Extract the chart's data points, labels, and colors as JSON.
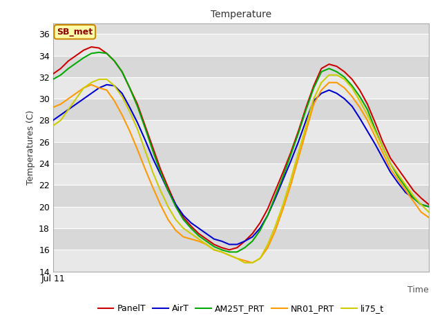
{
  "title": "Temperature",
  "xlabel": "Time",
  "ylabel": "Temperatures (C)",
  "annotation": "SB_met",
  "ylim": [
    14,
    37
  ],
  "yticks": [
    14,
    16,
    18,
    20,
    22,
    24,
    26,
    28,
    30,
    32,
    34,
    36
  ],
  "xlabel_tick": "Jul 11",
  "fig_bg": "#ffffff",
  "plot_bg": "#d8d8d8",
  "band_color1": "#e8e8e8",
  "band_color2": "#f0f0f0",
  "series": {
    "PanelT": {
      "color": "#cc0000",
      "data": [
        32.3,
        32.8,
        33.5,
        34.0,
        34.5,
        34.8,
        34.7,
        34.2,
        33.5,
        32.5,
        31.0,
        29.5,
        27.5,
        25.5,
        23.5,
        21.8,
        20.2,
        19.0,
        18.2,
        17.5,
        17.0,
        16.5,
        16.2,
        16.0,
        16.2,
        16.8,
        17.5,
        18.5,
        19.8,
        21.5,
        23.2,
        25.0,
        27.0,
        29.2,
        31.2,
        32.8,
        33.2,
        33.0,
        32.5,
        31.8,
        30.8,
        29.5,
        27.8,
        26.0,
        24.5,
        23.5,
        22.5,
        21.5,
        20.8,
        20.2
      ]
    },
    "AirT": {
      "color": "#0000cc",
      "data": [
        28.0,
        28.5,
        29.0,
        29.5,
        30.0,
        30.5,
        31.0,
        31.3,
        31.2,
        30.5,
        29.2,
        27.8,
        26.2,
        24.5,
        23.0,
        21.5,
        20.2,
        19.2,
        18.5,
        18.0,
        17.5,
        17.0,
        16.8,
        16.5,
        16.5,
        16.8,
        17.2,
        18.0,
        19.2,
        20.8,
        22.5,
        24.2,
        26.0,
        28.0,
        29.8,
        30.5,
        30.8,
        30.5,
        30.0,
        29.3,
        28.2,
        27.0,
        25.8,
        24.5,
        23.2,
        22.2,
        21.3,
        20.8,
        20.2,
        20.0
      ]
    },
    "AM25T_PRT": {
      "color": "#00aa00",
      "data": [
        31.8,
        32.2,
        32.8,
        33.3,
        33.8,
        34.2,
        34.3,
        34.2,
        33.5,
        32.5,
        31.0,
        29.3,
        27.3,
        25.2,
        23.2,
        21.5,
        20.0,
        18.8,
        18.0,
        17.3,
        16.8,
        16.3,
        16.0,
        15.8,
        15.8,
        16.2,
        16.8,
        17.8,
        19.2,
        21.0,
        22.8,
        24.8,
        26.8,
        29.0,
        31.0,
        32.5,
        32.8,
        32.5,
        32.0,
        31.2,
        30.2,
        29.0,
        27.2,
        25.5,
        24.0,
        22.8,
        21.8,
        20.8,
        20.2,
        20.0
      ]
    },
    "NR01_PRT": {
      "color": "#ff9900",
      "data": [
        29.2,
        29.5,
        30.0,
        30.5,
        31.0,
        31.3,
        31.0,
        30.8,
        29.8,
        28.5,
        27.0,
        25.3,
        23.5,
        21.8,
        20.2,
        18.8,
        17.8,
        17.2,
        17.0,
        16.8,
        16.5,
        16.0,
        15.8,
        15.5,
        15.2,
        15.0,
        14.8,
        15.2,
        16.2,
        17.8,
        19.8,
        22.0,
        24.5,
        27.0,
        29.5,
        30.8,
        31.5,
        31.5,
        31.0,
        30.2,
        29.2,
        28.0,
        26.5,
        25.0,
        23.5,
        22.5,
        21.5,
        20.5,
        19.5,
        19.0
      ]
    },
    "li75_t": {
      "color": "#cccc00",
      "data": [
        27.5,
        28.0,
        29.0,
        30.0,
        31.0,
        31.5,
        31.8,
        31.8,
        31.2,
        30.2,
        28.8,
        27.2,
        25.2,
        23.2,
        21.5,
        20.0,
        18.8,
        18.0,
        17.5,
        17.0,
        16.5,
        16.0,
        15.8,
        15.5,
        15.2,
        14.8,
        14.8,
        15.2,
        16.5,
        18.2,
        20.2,
        22.5,
        25.0,
        27.5,
        30.0,
        31.5,
        32.2,
        32.2,
        31.8,
        31.0,
        29.8,
        28.5,
        27.0,
        25.5,
        24.0,
        23.0,
        22.0,
        21.0,
        20.2,
        19.5
      ]
    }
  },
  "legend_order": [
    "PanelT",
    "AirT",
    "AM25T_PRT",
    "NR01_PRT",
    "li75_t"
  ],
  "legend_colors": [
    "#cc0000",
    "#0000cc",
    "#00aa00",
    "#ff9900",
    "#cccc00"
  ]
}
